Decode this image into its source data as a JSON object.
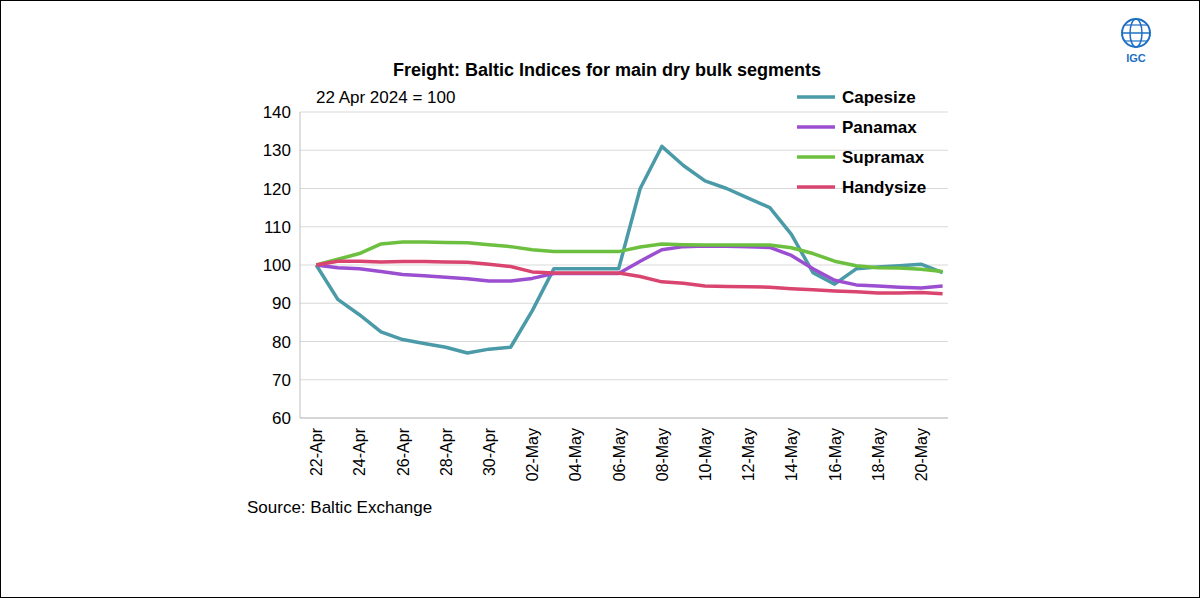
{
  "chart_data": {
    "type": "line",
    "title": "Freight: Baltic Indices for main dry bulk segments",
    "subtitle": "22 Apr 2024 = 100",
    "source": "Source: Baltic Exchange",
    "logo_text": "IGC",
    "categories": [
      "22-Apr",
      null,
      "24-Apr",
      null,
      "26-Apr",
      null,
      "28-Apr",
      null,
      "30-Apr",
      null,
      "02-May",
      null,
      "04-May",
      null,
      "06-May",
      null,
      "08-May",
      null,
      "10-May",
      null,
      "12-May",
      null,
      "14-May",
      null,
      "16-May",
      null,
      "18-May",
      null,
      "20-May",
      null
    ],
    "series": [
      {
        "name": "Capesize",
        "color": "#4a9aa8",
        "values": [
          100,
          91,
          87,
          82.5,
          80.5,
          79.5,
          78.5,
          77,
          78,
          78.5,
          88,
          99,
          99,
          99,
          99,
          120,
          131,
          126,
          122,
          120,
          117.5,
          115,
          108,
          98,
          95,
          99,
          99.5,
          99.8,
          100.2,
          98
        ]
      },
      {
        "name": "Panamax",
        "color": "#9b4fd0",
        "values": [
          100,
          99.3,
          99,
          98.3,
          97.5,
          97.2,
          96.8,
          96.4,
          95.8,
          95.8,
          96.5,
          97.8,
          97.8,
          97.8,
          97.8,
          101,
          104,
          104.8,
          105,
          104.9,
          104.8,
          104.6,
          102.5,
          99,
          96,
          94.8,
          94.5,
          94.2,
          94,
          94.5
        ]
      },
      {
        "name": "Supramax",
        "color": "#6cbf3f",
        "values": [
          100,
          101.5,
          103,
          105.5,
          106,
          106,
          105.9,
          105.8,
          105.3,
          104.8,
          104,
          103.5,
          103.5,
          103.5,
          103.5,
          104.7,
          105.5,
          105.3,
          105.2,
          105.2,
          105.2,
          105.2,
          104.5,
          103,
          101,
          99.8,
          99.3,
          99.2,
          98.9,
          98.3
        ]
      },
      {
        "name": "Handysize",
        "color": "#d9456e",
        "values": [
          100,
          101,
          101,
          100.8,
          100.9,
          100.9,
          100.8,
          100.7,
          100.2,
          99.6,
          98.2,
          97.9,
          97.9,
          97.9,
          97.9,
          97,
          95.6,
          95.2,
          94.5,
          94.4,
          94.3,
          94.2,
          93.8,
          93.5,
          93.2,
          93,
          92.7,
          92.7,
          92.8,
          92.5
        ]
      }
    ],
    "ylim": [
      60,
      140
    ],
    "yticks": [
      60,
      70,
      80,
      90,
      100,
      110,
      120,
      130,
      140
    ],
    "grid": true,
    "legend": "top-right"
  }
}
